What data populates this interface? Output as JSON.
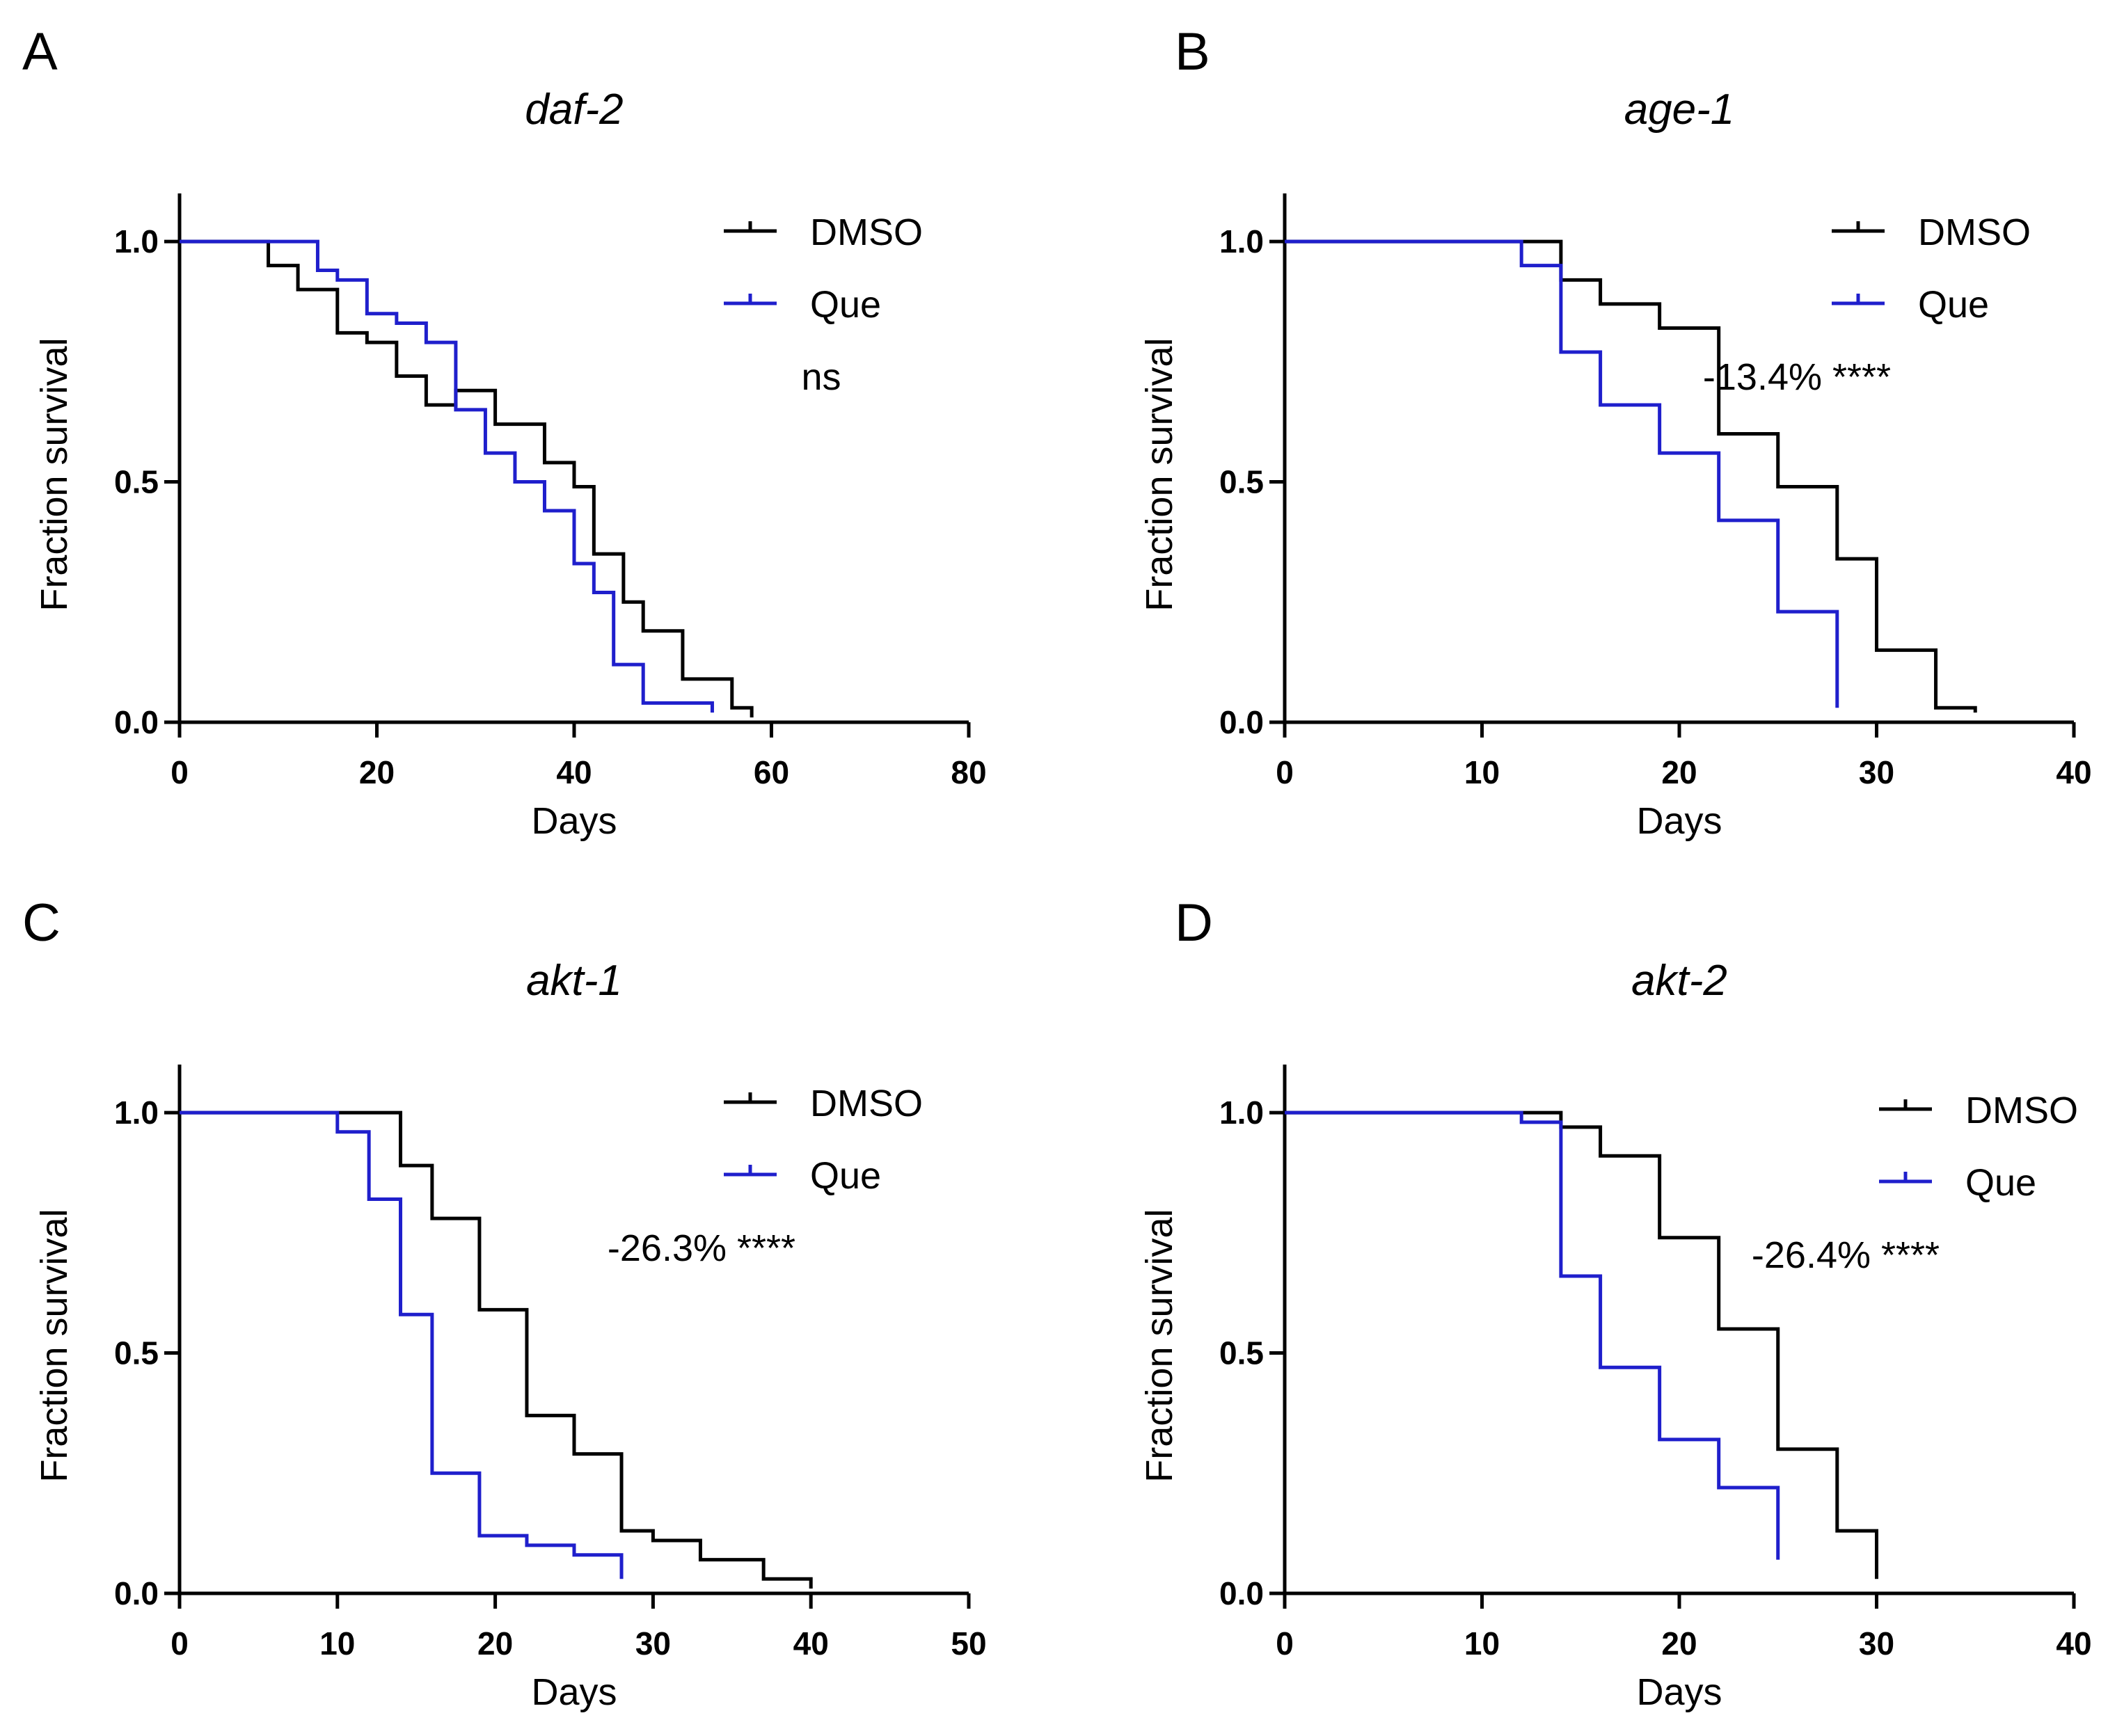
{
  "chart_data": [
    {
      "type": "line",
      "panel_label": "A",
      "title": "daf-2",
      "xlabel": "Days",
      "ylabel": "Fraction survival",
      "xlim": [
        0,
        80
      ],
      "ylim": [
        0,
        1.1
      ],
      "xticks": [
        "0",
        "20",
        "40",
        "60",
        "80"
      ],
      "yticks": [
        "0.0",
        "0.5",
        "1.0"
      ],
      "annotation": "ns",
      "series": [
        {
          "name": "DMSO",
          "color": "#000000",
          "x": [
            0,
            9,
            12,
            16,
            19,
            22,
            25,
            28,
            32,
            34,
            37,
            40,
            42,
            45,
            47,
            51,
            54,
            56,
            58
          ],
          "y": [
            1.0,
            0.95,
            0.9,
            0.81,
            0.79,
            0.72,
            0.66,
            0.69,
            0.62,
            0.62,
            0.54,
            0.49,
            0.35,
            0.25,
            0.19,
            0.09,
            0.09,
            0.03,
            0.01
          ]
        },
        {
          "name": "Que",
          "color": "#1f1fcc",
          "x": [
            0,
            12,
            14,
            16,
            19,
            22,
            25,
            28,
            31,
            34,
            37,
            40,
            42,
            44,
            47,
            54
          ],
          "y": [
            1.0,
            1.0,
            0.94,
            0.92,
            0.85,
            0.83,
            0.79,
            0.65,
            0.56,
            0.5,
            0.44,
            0.33,
            0.27,
            0.12,
            0.04,
            0.02
          ]
        }
      ]
    },
    {
      "type": "line",
      "panel_label": "B",
      "title": "age-1",
      "xlabel": "Days",
      "ylabel": "Fraction survival",
      "xlim": [
        0,
        40
      ],
      "ylim": [
        0,
        1.1
      ],
      "xticks": [
        "0",
        "10",
        "20",
        "30",
        "40"
      ],
      "yticks": [
        "0.0",
        "0.5",
        "1.0"
      ],
      "annotation": "-13.4% ****",
      "series": [
        {
          "name": "DMSO",
          "color": "#000000",
          "x": [
            0,
            12,
            14,
            16,
            19,
            22,
            25,
            28,
            30,
            33,
            35
          ],
          "y": [
            1.0,
            1.0,
            0.92,
            0.87,
            0.82,
            0.6,
            0.49,
            0.34,
            0.15,
            0.03,
            0.02
          ]
        },
        {
          "name": "Que",
          "color": "#1f1fcc",
          "x": [
            0,
            10,
            12,
            14,
            16,
            19,
            22,
            25,
            28
          ],
          "y": [
            1.0,
            1.0,
            0.95,
            0.77,
            0.66,
            0.56,
            0.42,
            0.23,
            0.03
          ]
        }
      ]
    },
    {
      "type": "line",
      "panel_label": "C",
      "title": "akt-1",
      "xlabel": "Days",
      "ylabel": "Fraction survival",
      "xlim": [
        0,
        50
      ],
      "ylim": [
        0,
        1.1
      ],
      "xticks": [
        "0",
        "10",
        "20",
        "30",
        "40",
        "50"
      ],
      "yticks": [
        "0.0",
        "0.5",
        "1.0"
      ],
      "annotation": "-26.3% ****",
      "series": [
        {
          "name": "DMSO",
          "color": "#000000",
          "x": [
            0,
            12,
            14,
            16,
            19,
            22,
            25,
            28,
            30,
            33,
            37,
            40
          ],
          "y": [
            1.0,
            1.0,
            0.89,
            0.78,
            0.59,
            0.37,
            0.29,
            0.13,
            0.11,
            0.07,
            0.03,
            0.01
          ]
        },
        {
          "name": "Que",
          "color": "#1f1fcc",
          "x": [
            0,
            7,
            10,
            12,
            14,
            16,
            19,
            22,
            25,
            28
          ],
          "y": [
            1.0,
            1.0,
            0.96,
            0.82,
            0.58,
            0.25,
            0.12,
            0.1,
            0.08,
            0.03
          ]
        }
      ]
    },
    {
      "type": "line",
      "panel_label": "D",
      "title": "akt-2",
      "xlabel": "Days",
      "ylabel": "Fraction survival",
      "xlim": [
        0,
        40
      ],
      "ylim": [
        0,
        1.1
      ],
      "xticks": [
        "0",
        "10",
        "20",
        "30",
        "40"
      ],
      "yticks": [
        "0.0",
        "0.5",
        "1.0"
      ],
      "annotation": "-26.4% ****",
      "series": [
        {
          "name": "DMSO",
          "color": "#000000",
          "x": [
            0,
            12,
            14,
            16,
            19,
            22,
            25,
            28,
            30
          ],
          "y": [
            1.0,
            1.0,
            0.97,
            0.91,
            0.74,
            0.55,
            0.3,
            0.13,
            0.03
          ]
        },
        {
          "name": "Que",
          "color": "#1f1fcc",
          "x": [
            0,
            10,
            12,
            14,
            16,
            19,
            22,
            25
          ],
          "y": [
            1.0,
            1.0,
            0.98,
            0.66,
            0.47,
            0.32,
            0.22,
            0.07
          ]
        }
      ]
    }
  ]
}
